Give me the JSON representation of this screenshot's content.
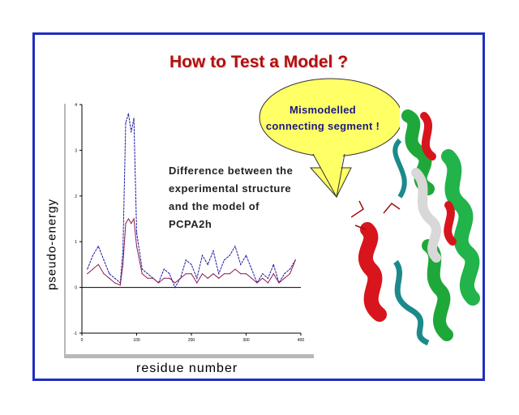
{
  "slide": {
    "title": "How to Test a Model ?",
    "callout": [
      "Mismodelled",
      "connecting segment !"
    ],
    "annotation": [
      "Difference between the",
      "experimental structure",
      "and the model of",
      "PCPA2h"
    ],
    "protein_image": "protein ribbon structure (red, green, white, teal helices)",
    "accent_color": "#1f2fbf",
    "title_color": "#b01010"
  },
  "chart_data": {
    "type": "line",
    "xlabel": "residue number",
    "ylabel": "pseudo-energy",
    "xlim": [
      0,
      400
    ],
    "ylim": [
      -1,
      4
    ],
    "x_ticks": [
      "0",
      "100",
      "200",
      "300",
      "400"
    ],
    "y_ticks": [
      "-1",
      "0",
      "1",
      "2",
      "3",
      "4"
    ],
    "grid": false,
    "series": [
      {
        "color": "#1a1aa0",
        "style": "dashed",
        "x": [
          10,
          20,
          30,
          40,
          50,
          60,
          70,
          75,
          80,
          85,
          90,
          95,
          100,
          110,
          120,
          130,
          140,
          150,
          160,
          170,
          180,
          190,
          200,
          210,
          220,
          230,
          240,
          250,
          260,
          270,
          280,
          290,
          300,
          310,
          320,
          330,
          340,
          350,
          360,
          370,
          380,
          390
        ],
        "values": [
          0.4,
          0.7,
          0.9,
          0.6,
          0.3,
          0.2,
          0.1,
          0.8,
          3.6,
          3.8,
          3.4,
          3.7,
          1.2,
          0.4,
          0.3,
          0.2,
          0.1,
          0.4,
          0.3,
          0.0,
          0.2,
          0.6,
          0.5,
          0.2,
          0.7,
          0.5,
          0.8,
          0.3,
          0.6,
          0.7,
          0.9,
          0.5,
          0.7,
          0.4,
          0.1,
          0.3,
          0.2,
          0.5,
          0.1,
          0.3,
          0.4,
          0.6
        ]
      },
      {
        "color": "#8b1a50",
        "style": "solid",
        "x": [
          10,
          20,
          30,
          40,
          50,
          60,
          70,
          75,
          80,
          85,
          90,
          95,
          100,
          110,
          120,
          130,
          140,
          150,
          160,
          170,
          180,
          190,
          200,
          210,
          220,
          230,
          240,
          250,
          260,
          270,
          280,
          290,
          300,
          310,
          320,
          330,
          340,
          350,
          360,
          370,
          380,
          390
        ],
        "values": [
          0.3,
          0.4,
          0.5,
          0.3,
          0.2,
          0.1,
          0.05,
          0.5,
          1.4,
          1.5,
          1.4,
          1.5,
          0.9,
          0.3,
          0.2,
          0.2,
          0.1,
          0.2,
          0.2,
          0.1,
          0.2,
          0.3,
          0.3,
          0.1,
          0.3,
          0.2,
          0.3,
          0.2,
          0.3,
          0.3,
          0.4,
          0.3,
          0.3,
          0.2,
          0.1,
          0.2,
          0.1,
          0.3,
          0.1,
          0.2,
          0.3,
          0.6
        ]
      }
    ]
  }
}
